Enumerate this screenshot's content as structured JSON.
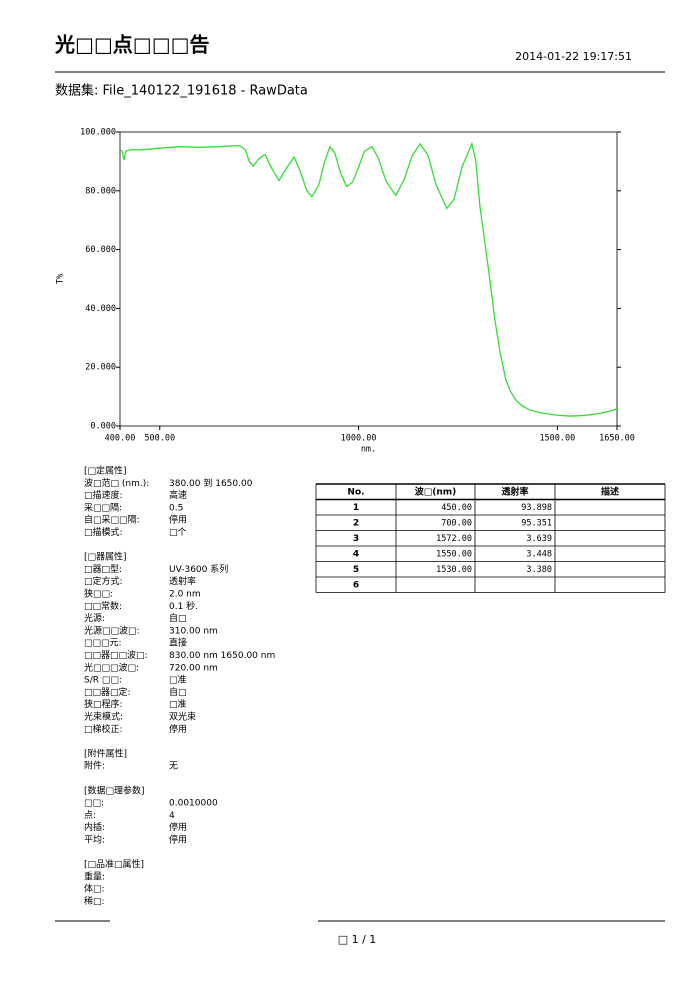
{
  "header": {
    "title": "光□□点□□□告",
    "datetime": "2014-01-22  19:17:51"
  },
  "dataset": "数据集: File_140122_191618 - RawData",
  "chart_data": {
    "type": "line",
    "xlabel": "nm.",
    "ylabel": "T%",
    "xlim": [
      400,
      1650
    ],
    "ylim": [
      0,
      100
    ],
    "xticks": [
      {
        "value": 400,
        "label": "400.00"
      },
      {
        "value": 500,
        "label": "500.00"
      },
      {
        "value": 1000,
        "label": "1000.00"
      },
      {
        "value": 1500,
        "label": "1500.00"
      },
      {
        "value": 1650,
        "label": "1650.00"
      }
    ],
    "yticks": [
      {
        "value": 0,
        "label": "0.000"
      },
      {
        "value": 20,
        "label": "20.000"
      },
      {
        "value": 40,
        "label": "40.000"
      },
      {
        "value": 60,
        "label": "60.000"
      },
      {
        "value": 80,
        "label": "80.000"
      },
      {
        "value": 100,
        "label": "100.000"
      }
    ],
    "x": [
      400,
      405,
      410,
      415,
      430,
      450,
      500,
      550,
      600,
      650,
      700,
      715,
      725,
      735,
      750,
      765,
      780,
      800,
      820,
      838,
      855,
      870,
      883,
      900,
      915,
      928,
      940,
      955,
      970,
      985,
      1000,
      1015,
      1034,
      1050,
      1070,
      1094,
      1115,
      1135,
      1155,
      1175,
      1195,
      1222,
      1240,
      1260,
      1285,
      1295,
      1305,
      1318,
      1330,
      1343,
      1356,
      1370,
      1381,
      1395,
      1410,
      1430,
      1456,
      1497,
      1530,
      1557,
      1580,
      1607,
      1630,
      1650
    ],
    "series": [
      {
        "color": "#33dd33",
        "values": [
          94,
          93.5,
          90.5,
          93.5,
          94,
          93.9,
          94.5,
          95,
          94.8,
          95,
          95.4,
          94,
          90,
          88.4,
          91,
          92.3,
          88,
          83.5,
          88,
          91.5,
          86,
          80,
          78,
          82,
          90,
          95,
          93,
          86,
          81.5,
          83,
          88,
          93.5,
          95,
          91,
          83,
          78.5,
          84,
          92,
          96,
          92,
          82,
          74,
          77,
          88,
          96,
          90,
          75,
          62,
          50,
          36,
          25,
          16,
          12,
          9,
          7,
          5.5,
          4.5,
          3.7,
          3.38,
          3.5,
          3.8,
          4.3,
          5,
          5.8
        ]
      }
    ]
  },
  "properties": [
    {
      "title": "[□定属性]",
      "rows": [
        [
          "波□范□ (nm.):",
          "380.00 到 1650.00"
        ],
        [
          "□描速度:",
          "高速"
        ],
        [
          "采□□隔:",
          "0.5"
        ],
        [
          "自□采□□隔:",
          "停用"
        ],
        [
          "□描模式:",
          "□个"
        ]
      ]
    },
    {
      "title": "[□器属性]",
      "rows": [
        [
          "□器□型:",
          "UV-3600 系列"
        ],
        [
          "□定方式:",
          "透射率"
        ],
        [
          "狭□□:",
          "2.0 nm"
        ],
        [
          "□□常数:",
          "0.1 秒."
        ],
        [
          "光源:",
          "自□"
        ],
        [
          "光源□□波□:",
          "310.00 nm"
        ],
        [
          "□□□元:",
          "直接"
        ],
        [
          "□□器□□波□:",
          "830.00 nm  1650.00 nm"
        ],
        [
          "光□□□波□:",
          "720.00 nm"
        ],
        [
          "S/R □□:",
          "□准"
        ],
        [
          "□□器□定:",
          "自□"
        ],
        [
          "狭□程序:",
          "□准"
        ],
        [
          "光束模式:",
          "双光束"
        ],
        [
          "□梯校正:",
          "停用"
        ]
      ]
    },
    {
      "title": "[附件属性]",
      "rows": [
        [
          "附件:",
          "无"
        ]
      ]
    },
    {
      "title": "[数据□理参数]",
      "rows": [
        [
          "□□:",
          "0.0010000"
        ],
        [
          "点:",
          "4"
        ],
        [
          "内插:",
          "停用"
        ],
        [
          "平均:",
          "停用"
        ]
      ]
    },
    {
      "title": "[□品准□属性]",
      "rows": [
        [
          "重量:"
        ],
        [
          "体□:"
        ],
        [
          "稀□:"
        ]
      ]
    }
  ],
  "table": {
    "columns": [
      "No.",
      "波□(nm)",
      "透射率",
      "描述"
    ],
    "rows": [
      [
        "1",
        "450.00",
        "93.898"
      ],
      [
        "2",
        "700.00",
        "95.351"
      ],
      [
        "3",
        "1572.00",
        "3.639"
      ],
      [
        "4",
        "1550.00",
        "3.448"
      ],
      [
        "5",
        "1530.00",
        "3.380"
      ],
      [
        "6"
      ]
    ]
  },
  "footer": "□ 1 / 1"
}
